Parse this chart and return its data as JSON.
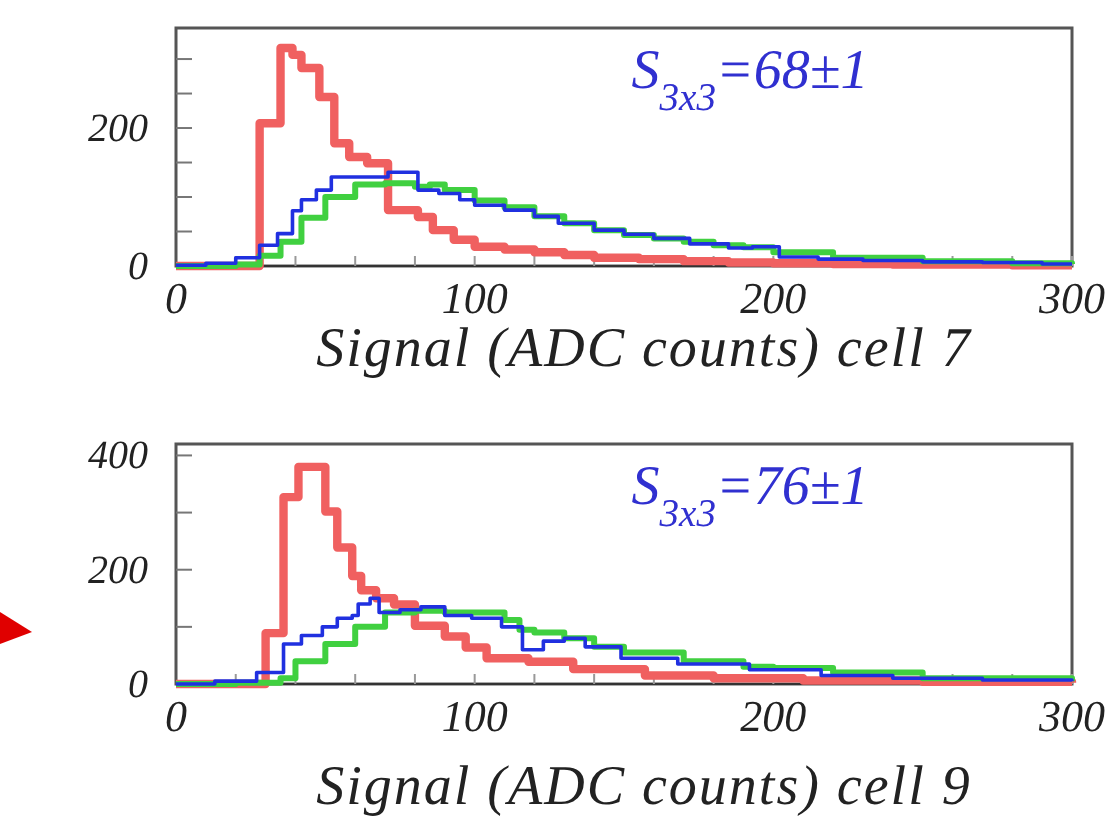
{
  "chart_data": [
    {
      "type": "step",
      "xlabel": "Signal (ADC counts) cell 7",
      "annotations": [
        "S$_{3x3}$=68±1"
      ],
      "xlim": [
        0,
        300
      ],
      "ylim": [
        0,
        345
      ],
      "xticks": [
        0,
        {
          "value": 20,
          "label": null
        },
        {
          "value": 40,
          "label": null
        },
        {
          "value": 60,
          "label": null
        },
        {
          "value": 80,
          "label": null
        },
        100,
        {
          "value": 120,
          "label": null
        },
        {
          "value": 140,
          "label": null
        },
        {
          "value": 160,
          "label": null
        },
        {
          "value": 180,
          "label": null
        },
        200,
        {
          "value": 220,
          "label": null
        },
        {
          "value": 240,
          "label": null
        },
        {
          "value": 260,
          "label": null
        },
        {
          "value": 280,
          "label": null
        },
        300
      ],
      "yticks": [
        0,
        {
          "value": 50,
          "label": null
        },
        {
          "value": 100,
          "label": null
        },
        {
          "value": 150,
          "label": null
        },
        200,
        {
          "value": 250,
          "label": null
        },
        {
          "value": 300,
          "label": null
        }
      ],
      "series": [
        {
          "color": "#f06060",
          "x": [
            0,
            28,
            35,
            39,
            42,
            48,
            53,
            58,
            64,
            71,
            81,
            86,
            93,
            100,
            110,
            120,
            130,
            140,
            155,
            170,
            185,
            200,
            220,
            240,
            260,
            280,
            300
          ],
          "values": [
            0,
            207,
            316,
            306,
            287,
            245,
            178,
            158,
            149,
            81,
            71,
            52,
            38,
            28,
            24,
            20,
            16,
            12,
            10,
            7,
            5,
            4,
            3,
            2,
            2,
            1,
            1
          ]
        },
        {
          "color": "#40d040",
          "x": [
            0,
            20,
            28,
            35,
            42,
            50,
            60,
            70,
            80,
            85,
            90,
            100,
            110,
            120,
            130,
            140,
            150,
            160,
            170,
            180,
            190,
            200,
            220,
            250,
            280,
            300
          ],
          "values": [
            0,
            2,
            15,
            35,
            70,
            100,
            118,
            120,
            115,
            118,
            110,
            95,
            85,
            72,
            62,
            52,
            45,
            40,
            35,
            30,
            27,
            20,
            12,
            7,
            4,
            3
          ]
        },
        {
          "color": "#2030e0",
          "x": [
            0,
            10,
            20,
            28,
            34,
            39,
            42,
            47,
            52,
            71,
            81,
            88,
            95,
            100,
            110,
            120,
            128,
            140,
            150,
            160,
            172,
            185,
            193,
            202,
            215,
            230,
            250,
            270,
            290,
            300
          ],
          "values": [
            1,
            4,
            12,
            30,
            47,
            80,
            96,
            110,
            129,
            136,
            110,
            105,
            96,
            88,
            81,
            72,
            62,
            52,
            46,
            40,
            32,
            26,
            28,
            13,
            10,
            8,
            6,
            5,
            3,
            3
          ]
        }
      ]
    },
    {
      "type": "step",
      "xlabel": "Signal (ADC counts) cell 9",
      "annotations": [
        "S$_{3x3}$=76±1"
      ],
      "xlim": [
        0,
        300
      ],
      "ylim": [
        0,
        420
      ],
      "xticks": [
        0,
        {
          "value": 20,
          "label": null
        },
        {
          "value": 40,
          "label": null
        },
        {
          "value": 60,
          "label": null
        },
        {
          "value": 80,
          "label": null
        },
        100,
        {
          "value": 120,
          "label": null
        },
        {
          "value": 140,
          "label": null
        },
        {
          "value": 160,
          "label": null
        },
        {
          "value": 180,
          "label": null
        },
        200,
        {
          "value": 220,
          "label": null
        },
        {
          "value": 240,
          "label": null
        },
        {
          "value": 260,
          "label": null
        },
        {
          "value": 280,
          "label": null
        },
        300
      ],
      "yticks": [
        0,
        {
          "value": 100,
          "label": null
        },
        200,
        {
          "value": 300,
          "label": null
        },
        400
      ],
      "series": [
        {
          "color": "#f06060",
          "x": [
            0,
            30,
            36,
            41,
            44,
            50,
            54,
            59,
            62,
            67,
            73,
            80,
            90,
            97,
            104,
            118,
            133,
            157,
            180,
            210,
            250,
            300
          ],
          "values": [
            0,
            89,
            327,
            380,
            380,
            302,
            239,
            189,
            164,
            150,
            139,
            102,
            83,
            64,
            45,
            39,
            26,
            15,
            10,
            6,
            4,
            2
          ]
        },
        {
          "color": "#40d040",
          "x": [
            0,
            20,
            35,
            40,
            50,
            60,
            70,
            80,
            90,
            100,
            110,
            115,
            120,
            130,
            140,
            150,
            170,
            190,
            200,
            220,
            250,
            300
          ],
          "values": [
            0,
            2,
            10,
            40,
            70,
            100,
            125,
            128,
            125,
            125,
            112,
            95,
            90,
            80,
            65,
            55,
            40,
            30,
            28,
            20,
            10,
            5
          ]
        },
        {
          "color": "#2030e0",
          "x": [
            0,
            13,
            27,
            36,
            42,
            49,
            54,
            59,
            61,
            65,
            68,
            75,
            82,
            90,
            99,
            109,
            116,
            123,
            130,
            137,
            149,
            168,
            192,
            216,
            240,
            270,
            300
          ],
          "values": [
            0,
            5,
            20,
            70,
            85,
            100,
            115,
            120,
            140,
            150,
            125,
            130,
            135,
            120,
            115,
            100,
            60,
            75,
            80,
            65,
            45,
            35,
            25,
            15,
            10,
            7,
            5
          ]
        }
      ]
    }
  ]
}
